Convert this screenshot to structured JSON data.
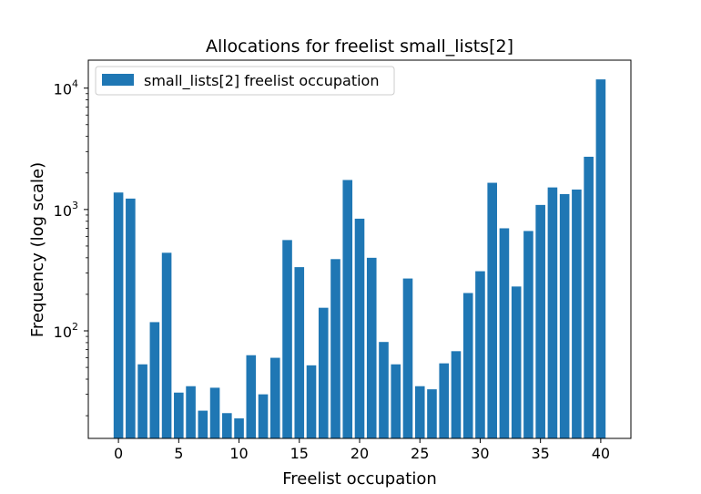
{
  "chart_data": {
    "type": "bar",
    "title": "Allocations for freelist small_lists[2]",
    "xlabel": "Freelist occupation",
    "ylabel": "Frequency (log scale)",
    "yscale": "log",
    "ylim": [
      13,
      17000
    ],
    "xlim": [
      -2.5,
      42.5
    ],
    "x_ticks": [
      0,
      5,
      10,
      15,
      20,
      25,
      30,
      35,
      40
    ],
    "y_ticks": [
      {
        "value": 100,
        "base": "10",
        "exp": "2"
      },
      {
        "value": 1000,
        "base": "10",
        "exp": "3"
      },
      {
        "value": 10000,
        "base": "10",
        "exp": "4"
      }
    ],
    "legend": {
      "label": "small_lists[2] freelist occupation",
      "position": "top-left"
    },
    "bar_color": "#1f77b4",
    "x": [
      0,
      1,
      2,
      3,
      4,
      5,
      6,
      7,
      8,
      9,
      10,
      11,
      12,
      13,
      14,
      15,
      16,
      17,
      18,
      19,
      20,
      21,
      22,
      23,
      24,
      25,
      26,
      27,
      28,
      29,
      30,
      31,
      32,
      33,
      34,
      35,
      36,
      37,
      38,
      39,
      40
    ],
    "values": [
      1380,
      1230,
      53,
      118,
      440,
      31,
      35,
      22,
      34,
      21,
      19,
      63,
      30,
      60,
      560,
      335,
      52,
      155,
      390,
      1750,
      840,
      400,
      81,
      53,
      270,
      35,
      33,
      54,
      68,
      205,
      310,
      1660,
      700,
      232,
      665,
      1090,
      1520,
      1340,
      1460,
      2720,
      11800
    ]
  }
}
